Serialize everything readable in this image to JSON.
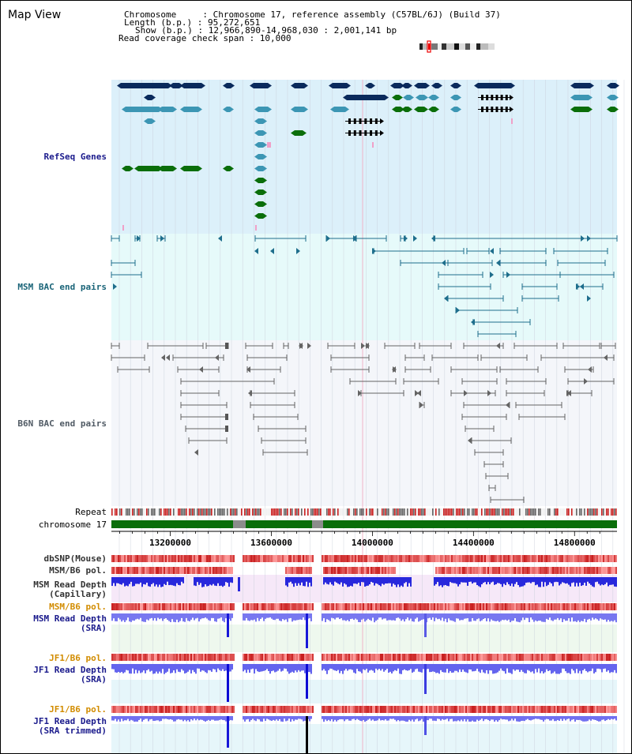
{
  "page_title": "Map View",
  "info": {
    "chromosome": "Chromosome     : Chromosome 17, reference assembly (C57BL/6J) (Build 37)",
    "length": "Length (b.p.) : 95,272,651",
    "show": "Show (b.p.) : 12,966,890-14,968,030 : 2,001,141 bp",
    "coverage": "Read coverage check span : 10,000"
  },
  "tracks": {
    "refseq": "RefSeq Genes",
    "msm_bac": "MSM BAC end pairs",
    "b6n_bac": "B6N BAC end pairs",
    "repeat": "Repeat",
    "chromosome": "chromosome 17",
    "dbsnp": "dbSNP(Mouse)",
    "msm_b6_pol": "MSM/B6 pol.",
    "msm_depth_cap_1": "MSM Read Depth",
    "msm_depth_cap_2": "(Capillary)",
    "msm_b6_pol2": "MSM/B6 pol.",
    "msm_depth_sra_1": "MSM Read Depth",
    "msm_depth_sra_2": "(SRA)",
    "jf1_b6_pol": "JF1/B6 pol.",
    "jf1_depth_sra_1": "JF1 Read Depth",
    "jf1_depth_sra_2": "(SRA)",
    "jf1_b6_pol2": "JF1/B6 pol.",
    "jf1_depth_trim_1": "JF1 Read Depth",
    "jf1_depth_trim_2": "(SRA trimmed)"
  },
  "axis": {
    "start": 12966890,
    "end": 14968030,
    "ticks": [
      "13200000",
      "13600000",
      "14000000",
      "14400000",
      "14800000"
    ]
  },
  "colors": {
    "refseq_bg": "#dcf0fa",
    "msm_bg": "#e6fafa",
    "b6n_bg": "#f4f6fa",
    "gene_navy": "#0a2a5c",
    "gene_teal": "#3c96b4",
    "gene_green": "#0a6e0a",
    "msm_line": "#1e6e8c",
    "b6n_line": "#646464",
    "chrom_green": "#0a6e0a",
    "track_label_navy": "#1a1a8c",
    "track_label_orange": "#d28c00",
    "track_label_teal": "#1a6478"
  }
}
